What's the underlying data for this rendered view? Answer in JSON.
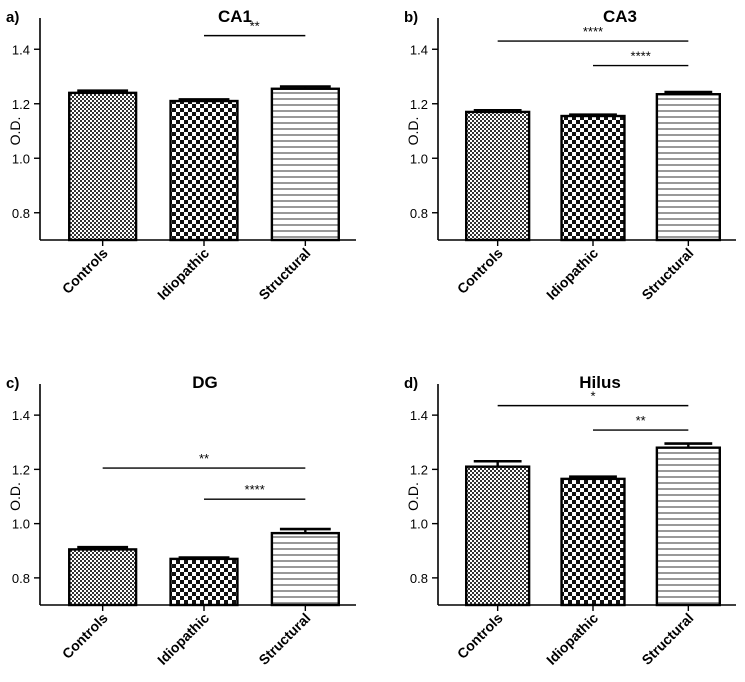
{
  "chart_data": [
    {
      "type": "bar",
      "panel_label": "a)",
      "title": "CA1",
      "ylabel": "O.D.",
      "xlabel": "",
      "categories": [
        "Controls",
        "Idiopathic",
        "Structural"
      ],
      "values": [
        1.24,
        1.21,
        1.255
      ],
      "errors": [
        0.008,
        0.006,
        0.008
      ],
      "ylim": [
        0.7,
        1.5
      ],
      "yticks": [
        "0.8",
        "1.0",
        "1.2",
        "1.4"
      ],
      "patterns": [
        "crosshatch-fine",
        "checker",
        "horizontal-lines"
      ],
      "annotations": [
        {
          "from": "Idiopathic",
          "to": "Structural",
          "y": 1.45,
          "label": "**"
        }
      ]
    },
    {
      "type": "bar",
      "panel_label": "b)",
      "title": "CA3",
      "ylabel": "O.D.",
      "xlabel": "",
      "categories": [
        "Controls",
        "Idiopathic",
        "Structural"
      ],
      "values": [
        1.17,
        1.155,
        1.235
      ],
      "errors": [
        0.006,
        0.005,
        0.008
      ],
      "ylim": [
        0.7,
        1.5
      ],
      "yticks": [
        "0.8",
        "1.0",
        "1.2",
        "1.4"
      ],
      "patterns": [
        "crosshatch-fine",
        "checker",
        "horizontal-lines"
      ],
      "annotations": [
        {
          "from": "Controls",
          "to": "Structural",
          "y": 1.43,
          "label": "****"
        },
        {
          "from": "Idiopathic",
          "to": "Structural",
          "y": 1.34,
          "label": "****"
        }
      ]
    },
    {
      "type": "bar",
      "panel_label": "c)",
      "title": "DG",
      "ylabel": "O.D.",
      "xlabel": "",
      "categories": [
        "Controls",
        "Idiopathic",
        "Structural"
      ],
      "values": [
        0.905,
        0.87,
        0.965
      ],
      "errors": [
        0.008,
        0.005,
        0.015
      ],
      "ylim": [
        0.7,
        1.5
      ],
      "yticks": [
        "0.8",
        "1.0",
        "1.2",
        "1.4"
      ],
      "patterns": [
        "crosshatch-fine",
        "checker",
        "horizontal-lines"
      ],
      "annotations": [
        {
          "from": "Controls",
          "to": "Structural",
          "y": 1.205,
          "label": "**"
        },
        {
          "from": "Idiopathic",
          "to": "Structural",
          "y": 1.09,
          "label": "****"
        }
      ]
    },
    {
      "type": "bar",
      "panel_label": "d)",
      "title": "Hilus",
      "ylabel": "O.D.",
      "xlabel": "",
      "categories": [
        "Controls",
        "Idiopathic",
        "Structural"
      ],
      "values": [
        1.21,
        1.165,
        1.28
      ],
      "errors": [
        0.02,
        0.008,
        0.015
      ],
      "ylim": [
        0.7,
        1.5
      ],
      "yticks": [
        "0.8",
        "1.0",
        "1.2",
        "1.4"
      ],
      "patterns": [
        "crosshatch-fine",
        "checker",
        "horizontal-lines"
      ],
      "annotations": [
        {
          "from": "Controls",
          "to": "Structural",
          "y": 1.435,
          "label": "*"
        },
        {
          "from": "Idiopathic",
          "to": "Structural",
          "y": 1.345,
          "label": "**"
        }
      ]
    }
  ]
}
